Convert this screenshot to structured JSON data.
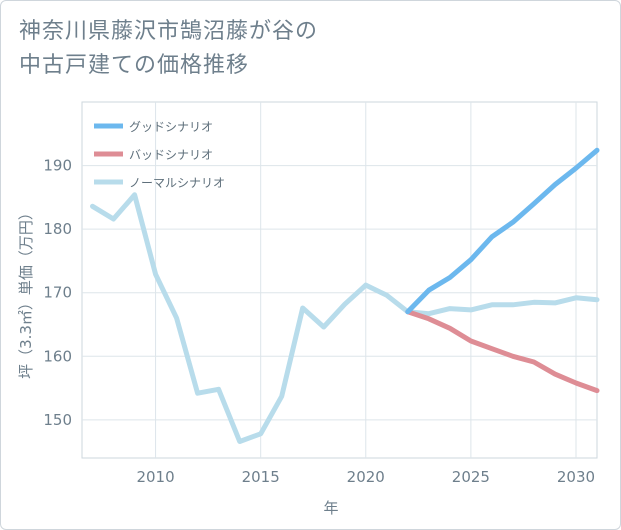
{
  "title_line1": "神奈川県藤沢市鵠沼藤が谷の",
  "title_line2": "中古戸建ての価格推移",
  "chart_data": {
    "type": "line",
    "title": "神奈川県藤沢市鵠沼藤が谷の中古戸建ての価格推移",
    "xlabel": "年",
    "ylabel": "坪（3.3㎡）単価（万円）",
    "xlim": [
      2006.5,
      2031
    ],
    "ylim": [
      144,
      200
    ],
    "xticks": [
      2010,
      2015,
      2020,
      2025,
      2030
    ],
    "yticks": [
      150,
      160,
      170,
      180,
      190
    ],
    "grid": true,
    "legend_position": "top-left",
    "series": [
      {
        "name": "グッドシナリオ",
        "color": "#6cb8ee",
        "x": [
          2022,
          2023,
          2024,
          2025,
          2026,
          2027,
          2028,
          2029,
          2030,
          2031
        ],
        "values": [
          167.0,
          170.4,
          172.4,
          175.2,
          178.8,
          181.1,
          184.0,
          187.0,
          189.6,
          192.4
        ]
      },
      {
        "name": "バッドシナリオ",
        "color": "#de8d95",
        "x": [
          2022,
          2023,
          2024,
          2025,
          2026,
          2027,
          2028,
          2029,
          2030,
          2031
        ],
        "values": [
          167.0,
          165.9,
          164.4,
          162.4,
          161.2,
          160.0,
          159.1,
          157.2,
          155.8,
          154.6
        ]
      },
      {
        "name": "ノーマルシナリオ",
        "color": "#b8dceb",
        "x": [
          2007,
          2008,
          2009,
          2010,
          2011,
          2012,
          2013,
          2014,
          2015,
          2016,
          2017,
          2018,
          2019,
          2020,
          2021,
          2022,
          2023,
          2024,
          2025,
          2026,
          2027,
          2028,
          2029,
          2030,
          2031
        ],
        "values": [
          183.6,
          181.6,
          185.4,
          172.9,
          166.0,
          154.2,
          154.8,
          146.6,
          147.8,
          153.7,
          167.6,
          164.6,
          168.2,
          171.2,
          169.6,
          167.0,
          166.7,
          167.5,
          167.3,
          168.1,
          168.1,
          168.5,
          168.4,
          169.2,
          168.9
        ]
      }
    ]
  }
}
